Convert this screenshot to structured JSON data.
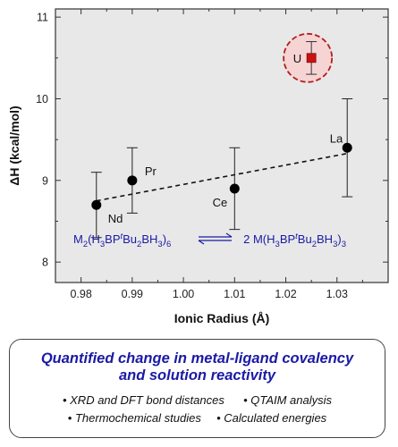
{
  "chart_data": {
    "type": "scatter",
    "ylabel": "ΔH (kcal/mol)",
    "xlabel": "Ionic Radius (Å)",
    "xlim": [
      0.975,
      1.04
    ],
    "ylim": [
      7.75,
      11.1
    ],
    "xticks": [
      "0.98",
      "0.99",
      "1.00",
      "1.01",
      "1.02",
      "1.03"
    ],
    "yticks": [
      "8",
      "9",
      "10",
      "11"
    ],
    "grid": false,
    "points": [
      {
        "label": "Nd",
        "x": 0.983,
        "y": 8.7,
        "err": 0.4
      },
      {
        "label": "Pr",
        "x": 0.99,
        "y": 9.0,
        "err": 0.4
      },
      {
        "label": "Ce",
        "x": 1.01,
        "y": 8.9,
        "err": 0.5
      },
      {
        "label": "La",
        "x": 1.032,
        "y": 9.4,
        "err": 0.6
      }
    ],
    "highlight_point": {
      "label": "U",
      "x": 1.025,
      "y": 10.5,
      "err": 0.2
    },
    "fit_line": {
      "style": "dashed",
      "x": [
        0.983,
        1.032
      ],
      "y": [
        8.75,
        9.33
      ]
    },
    "equation": {
      "lhs": [
        "M",
        "2",
        "(H",
        "3",
        "BP",
        "t",
        "Bu",
        "2",
        "BH",
        "3",
        ")",
        "6"
      ],
      "rhs": [
        "2 M(H",
        "3",
        "BP",
        "t",
        "Bu",
        "2",
        "BH",
        "3",
        ")",
        "3"
      ]
    },
    "colors": {
      "plot_bg": "#e8e8e8",
      "points": "#000000",
      "highlight": "#cc1111",
      "highlight_ring": "#b31d1d",
      "highlight_fill": "#f6d4d4",
      "equation": "#1a1aa6"
    }
  },
  "summary": {
    "title_line1": "Quantified change in metal-ligand covalency",
    "title_line2": "and solution reactivity",
    "bullets_row1": [
      "• XRD and DFT bond distances",
      "• QTAIM analysis"
    ],
    "bullets_row2": [
      "• Thermochemical studies",
      "• Calculated energies"
    ]
  }
}
